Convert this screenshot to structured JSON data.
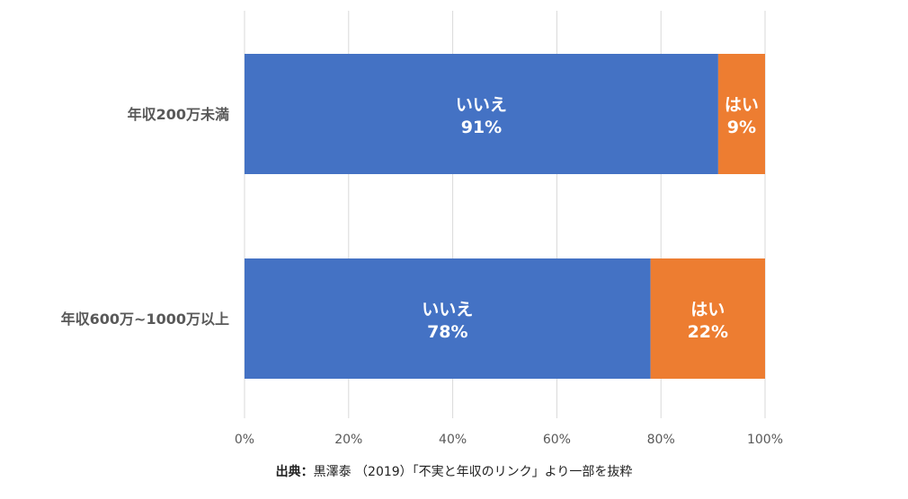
{
  "chart_data": {
    "type": "bar",
    "orientation": "horizontal",
    "stacked": true,
    "percent": true,
    "categories": [
      "年収200万未満",
      "年収600万~1000万以上"
    ],
    "series": [
      {
        "name": "いいえ",
        "values": [
          91,
          78
        ],
        "labels": [
          "91%",
          "78%"
        ],
        "color": "#4472C4"
      },
      {
        "name": "はい",
        "values": [
          9,
          22
        ],
        "labels": [
          "9%",
          "22%"
        ],
        "color": "#ED7D31"
      }
    ],
    "xlim": [
      0,
      100
    ],
    "xticks": [
      "0%",
      "20%",
      "40%",
      "60%",
      "80%",
      "100%"
    ],
    "grid": true,
    "legend": "none"
  },
  "source": {
    "prefix": "出典：",
    "text": "黒澤泰 （2019）「不実と年収のリンク」より一部を抜粋"
  }
}
